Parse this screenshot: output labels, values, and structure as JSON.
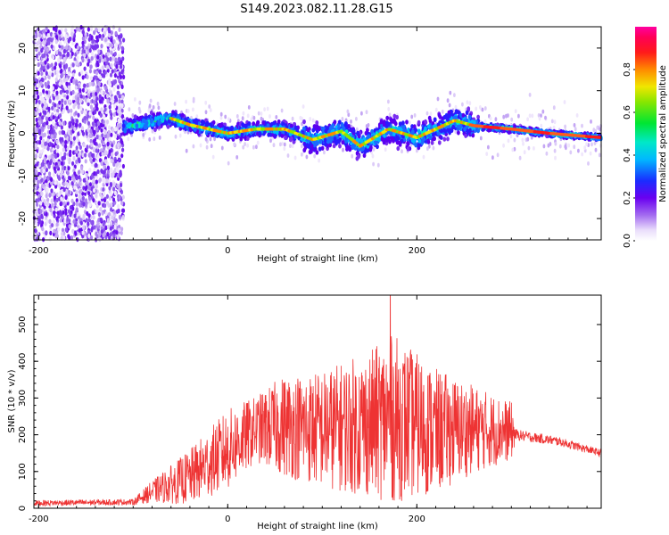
{
  "title": "S149.2023.082.11.28.G15",
  "chart_data": [
    {
      "type": "heatmap",
      "xlabel": "Height of straight line (km)",
      "ylabel": "Frequency (Hz)",
      "xlim": [
        -205,
        395
      ],
      "ylim": [
        -25,
        25
      ],
      "xticks": [
        -200,
        0,
        200
      ],
      "yticks": [
        20,
        10,
        0,
        -10,
        -20
      ],
      "colorbar": {
        "label": "Normalized spectral amplitude",
        "range": [
          0,
          1
        ],
        "ticks": [
          0.0,
          0.2,
          0.4,
          0.6,
          0.8
        ],
        "colormap": "rainbow (purple to red to magenta)"
      },
      "ridge_frequency": [
        {
          "x": -110,
          "y": 1.5
        },
        {
          "x": -60,
          "y": 3.5
        },
        {
          "x": -40,
          "y": 2.0
        },
        {
          "x": -20,
          "y": 1.0
        },
        {
          "x": 0,
          "y": 0.0
        },
        {
          "x": 30,
          "y": 1.0
        },
        {
          "x": 60,
          "y": 1.0
        },
        {
          "x": 90,
          "y": -1.5
        },
        {
          "x": 120,
          "y": 0.5
        },
        {
          "x": 140,
          "y": -3.0
        },
        {
          "x": 170,
          "y": 1.0
        },
        {
          "x": 200,
          "y": -1.0
        },
        {
          "x": 240,
          "y": 3.0
        },
        {
          "x": 260,
          "y": 1.8
        },
        {
          "x": 300,
          "y": 1.0
        },
        {
          "x": 340,
          "y": 0.0
        },
        {
          "x": 395,
          "y": -1.0
        }
      ]
    },
    {
      "type": "line",
      "xlabel": "Height of straight line (km)",
      "ylabel": "SNR (10 * v/v)",
      "xlim": [
        -205,
        395
      ],
      "ylim": [
        0,
        580
      ],
      "xticks": [
        -200,
        0,
        200
      ],
      "yticks": [
        0,
        100,
        200,
        300,
        400,
        500
      ],
      "color": "#ee3333",
      "envelope": [
        {
          "x": -205,
          "mean": 14,
          "amp": 8
        },
        {
          "x": -100,
          "mean": 17,
          "amp": 8
        },
        {
          "x": -80,
          "mean": 45,
          "amp": 30
        },
        {
          "x": -40,
          "mean": 85,
          "amp": 75
        },
        {
          "x": 0,
          "mean": 160,
          "amp": 110
        },
        {
          "x": 30,
          "mean": 215,
          "amp": 90
        },
        {
          "x": 60,
          "mean": 225,
          "amp": 140
        },
        {
          "x": 100,
          "mean": 215,
          "amp": 160
        },
        {
          "x": 150,
          "mean": 230,
          "amp": 200
        },
        {
          "x": 175,
          "mean": 245,
          "amp": 230
        },
        {
          "x": 220,
          "mean": 210,
          "amp": 170
        },
        {
          "x": 260,
          "mean": 215,
          "amp": 120
        },
        {
          "x": 300,
          "mean": 210,
          "amp": 80
        },
        {
          "x": 305,
          "mean": 200,
          "amp": 15
        },
        {
          "x": 350,
          "mean": 182,
          "amp": 12
        },
        {
          "x": 395,
          "mean": 150,
          "amp": 10
        }
      ],
      "peak": {
        "x": 172,
        "y": 580
      }
    }
  ]
}
